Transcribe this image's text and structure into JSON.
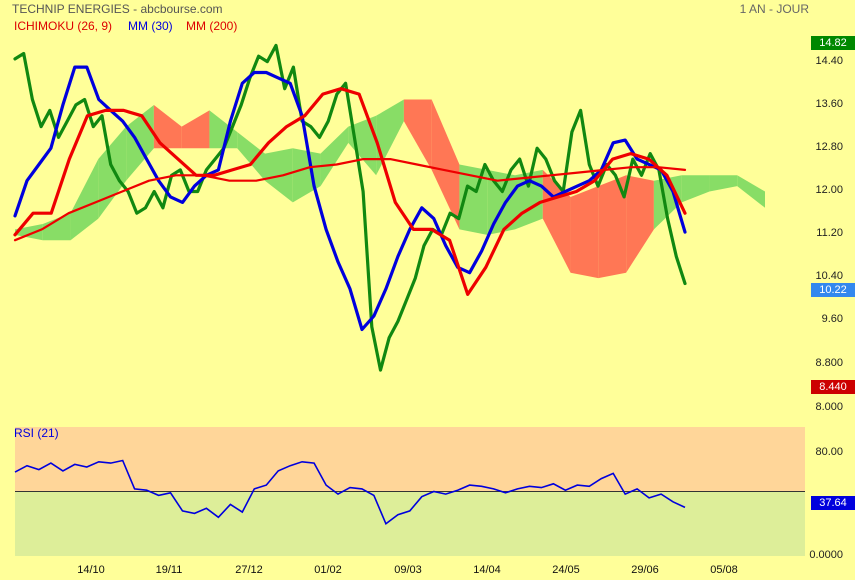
{
  "header": {
    "title": "TECHNIP ENERGIES - abcbourse.com",
    "period": "1 AN - JOUR"
  },
  "legend": {
    "ichimoku": "ICHIMOKU (26, 9)",
    "mm30": "MM (30)",
    "mm200": "MM (200)"
  },
  "rsi": {
    "title": "RSI (21)",
    "last_label": "37.64"
  },
  "badges": {
    "high": "14.82",
    "last": "10.22",
    "low": "8.440"
  },
  "colors": {
    "background": "#FFFF99",
    "price": "#118811",
    "mm30": "#0000DD",
    "red_line": "#EE0000",
    "cloud_bull": "#88DD66",
    "cloud_bear": "#FF7755",
    "rsi_upper": "#FFD699",
    "rsi_lower": "#DDEE99",
    "badge_high": "#008800",
    "badge_last": "#3388EE",
    "badge_low": "#CC0000"
  },
  "chart_data": [
    {
      "type": "line",
      "x_ticks": [
        "14/10",
        "19/11",
        "27/12",
        "01/02",
        "09/03",
        "14/04",
        "24/05",
        "29/06",
        "05/08"
      ],
      "y_ticks": [
        "14.40",
        "13.60",
        "12.80",
        "12.00",
        "11.20",
        "10.40",
        "9.60",
        "8.800",
        "8.000"
      ],
      "ylim": [
        8.0,
        14.8
      ],
      "series": [
        {
          "name": "",
          "role": "price",
          "values": [
            14.45,
            14.55,
            13.7,
            13.2,
            13.5,
            13.0,
            13.3,
            13.6,
            13.7,
            13.2,
            13.4,
            12.5,
            12.2,
            12.0,
            11.6,
            11.7,
            12.0,
            11.7,
            12.3,
            12.4,
            12.0,
            12.0,
            12.4,
            12.6,
            12.8,
            13.2,
            13.6,
            14.1,
            14.5,
            14.4,
            14.7,
            13.9,
            14.3,
            13.3,
            13.2,
            13.0,
            13.3,
            13.8,
            14.0,
            13.0,
            12.0,
            9.5,
            8.7,
            9.3,
            9.6,
            10.0,
            10.4,
            11.0,
            11.3,
            11.2,
            11.6,
            11.5,
            12.1,
            12.0,
            12.5,
            12.2,
            12.0,
            12.4,
            12.6,
            12.1,
            12.8,
            12.6,
            12.2,
            12.0,
            13.1,
            13.5,
            12.5,
            12.1,
            12.5,
            12.3,
            11.9,
            12.6,
            12.3,
            12.7,
            12.4,
            11.5,
            10.8,
            10.3
          ],
          "x_range": [
            "01/09",
            "12/07"
          ]
        },
        {
          "name": "MM (30)",
          "values": [
            11.55,
            12.2,
            12.5,
            12.8,
            13.6,
            14.3,
            14.3,
            13.7,
            13.5,
            13.3,
            13.0,
            12.6,
            12.2,
            11.9,
            11.8,
            12.1,
            12.3,
            12.4,
            13.3,
            14.0,
            14.2,
            14.2,
            14.1,
            14.0,
            13.4,
            12.1,
            11.3,
            10.7,
            10.2,
            9.45,
            9.7,
            10.2,
            10.8,
            11.3,
            11.7,
            11.5,
            11.0,
            10.6,
            10.5,
            10.9,
            11.4,
            11.8,
            12.1,
            12.2,
            12.1,
            11.9,
            12.0,
            12.1,
            12.2,
            12.4,
            12.9,
            12.95,
            12.6,
            12.5,
            12.4,
            12.0,
            11.25
          ],
          "x_range": [
            "01/09",
            "10/07"
          ]
        },
        {
          "name": "MM (200)",
          "values": [
            11.1,
            11.3,
            11.6,
            11.8,
            12.0,
            12.2,
            12.3,
            12.3,
            12.2,
            12.2,
            12.3,
            12.45,
            12.5,
            12.6,
            12.6,
            12.5,
            12.4,
            12.3,
            12.2,
            12.25,
            12.3,
            12.35,
            12.4,
            12.45,
            12.45,
            12.4
          ],
          "x_range": [
            "01/09",
            "12/07"
          ]
        },
        {
          "name": "",
          "role": "ichimoku red line",
          "values": [
            11.2,
            11.6,
            11.6,
            12.6,
            13.4,
            13.5,
            13.5,
            13.4,
            12.9,
            12.6,
            12.3,
            12.3,
            12.4,
            12.5,
            12.9,
            13.2,
            13.4,
            13.8,
            13.9,
            13.8,
            12.9,
            11.8,
            11.3,
            11.3,
            11.1,
            10.1,
            10.6,
            11.3,
            11.6,
            11.8,
            11.9,
            12.0,
            12.2,
            12.6,
            12.7,
            12.6,
            12.3,
            11.6
          ],
          "x_range": [
            "01/09",
            "12/07"
          ]
        }
      ],
      "cloud": {
        "bull_lower": [
          11.2,
          11.1,
          11.1,
          11.5,
          12.2,
          12.8,
          12.8,
          12.8,
          12.8,
          12.2,
          11.8,
          12.1,
          12.9,
          12.3,
          13.3,
          12.4,
          11.3,
          11.2,
          11.3,
          11.5,
          10.5,
          10.4,
          10.5,
          11.3,
          11.8,
          12.0,
          12.1,
          11.7
        ],
        "bull_upper": [
          11.3,
          11.4,
          11.6,
          12.6,
          13.2,
          13.6,
          13.2,
          13.5,
          13.1,
          12.7,
          12.8,
          12.7,
          13.2,
          13.4,
          13.7,
          13.7,
          12.5,
          12.4,
          12.3,
          12.4,
          11.9,
          12.1,
          12.3,
          12.2,
          12.3,
          12.3,
          12.3,
          12.0
        ],
        "x_range": [
          "01/09",
          "19/08"
        ]
      }
    },
    {
      "type": "line",
      "name": "RSI (21)",
      "y_ticks": [
        "80.00",
        "0.0000"
      ],
      "ylim": [
        0,
        100
      ],
      "level": 50,
      "values": [
        65,
        70,
        67,
        72,
        66,
        71,
        69,
        73,
        72,
        74,
        52,
        51,
        47,
        49,
        35,
        33,
        37,
        30,
        40,
        34,
        52,
        55,
        66,
        70,
        73,
        72,
        55,
        48,
        53,
        52,
        47,
        25,
        32,
        35,
        46,
        50,
        48,
        51,
        55,
        54,
        52,
        49,
        52,
        54,
        53,
        56,
        51,
        55,
        54,
        60,
        64,
        48,
        52,
        45,
        48,
        42,
        37.64
      ],
      "x_range": [
        "01/09",
        "10/07"
      ],
      "last": 37.64
    }
  ]
}
